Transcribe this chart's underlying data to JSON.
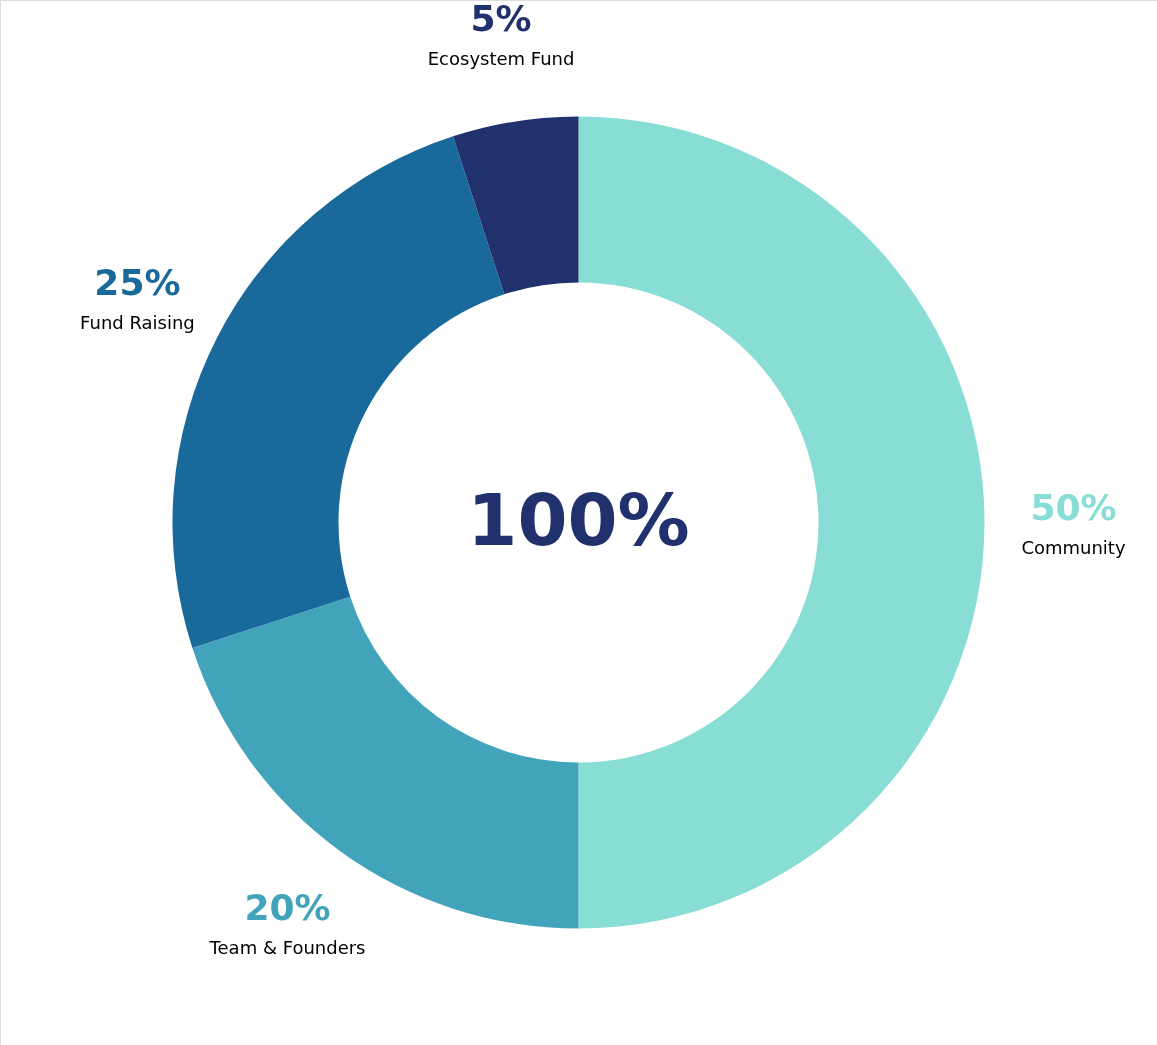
{
  "chart_data": {
    "type": "donut",
    "categories": [
      "Community",
      "Team & Founders",
      "Fund Raising",
      "Ecosystem Fund"
    ],
    "values": [
      50,
      20,
      25,
      5
    ],
    "colors": [
      "#88ddd5",
      "#42a4bb",
      "#196a9b",
      "#20316d"
    ],
    "value_labels": [
      "50%",
      "20%",
      "25%",
      "5%"
    ],
    "annotations": [
      "100%"
    ]
  }
}
